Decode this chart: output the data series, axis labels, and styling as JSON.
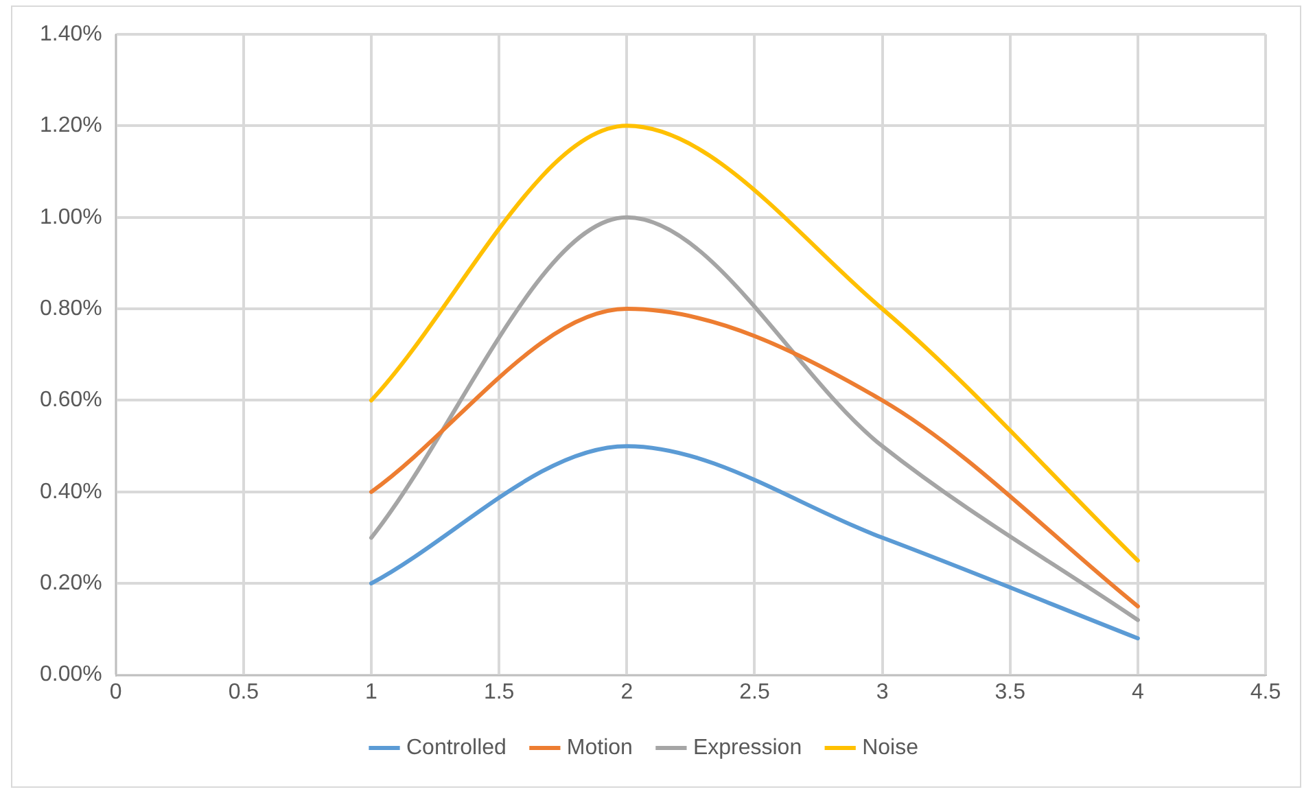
{
  "chart_data": {
    "type": "line",
    "x": [
      1,
      2,
      3,
      4
    ],
    "series": [
      {
        "name": "Controlled",
        "color": "#5b9bd5",
        "values": [
          0.2,
          0.5,
          0.3,
          0.08
        ]
      },
      {
        "name": "Motion",
        "color": "#ed7d31",
        "values": [
          0.4,
          0.8,
          0.6,
          0.15
        ]
      },
      {
        "name": "Expression",
        "color": "#a5a5a5",
        "values": [
          0.3,
          1.0,
          0.5,
          0.12
        ]
      },
      {
        "name": "Noise",
        "color": "#ffc000",
        "values": [
          0.6,
          1.2,
          0.8,
          0.25
        ]
      }
    ],
    "xlim": [
      0,
      4.5
    ],
    "xticks": [
      0,
      0.5,
      1,
      1.5,
      2,
      2.5,
      3,
      3.5,
      4,
      4.5
    ],
    "ylim": [
      0,
      1.4
    ],
    "yticks": [
      {
        "value": 0,
        "label": "0.00%"
      },
      {
        "value": 0.2,
        "label": "0.20%"
      },
      {
        "value": 0.4,
        "label": "0.40%"
      },
      {
        "value": 0.6,
        "label": "0.60%"
      },
      {
        "value": 0.8,
        "label": "0.80%"
      },
      {
        "value": 1.0,
        "label": "1.00%"
      },
      {
        "value": 1.2,
        "label": "1.20%"
      },
      {
        "value": 1.4,
        "label": "1.40%"
      }
    ],
    "grid": true,
    "legend": "bottom",
    "marker": "none",
    "line_style": "solid"
  }
}
